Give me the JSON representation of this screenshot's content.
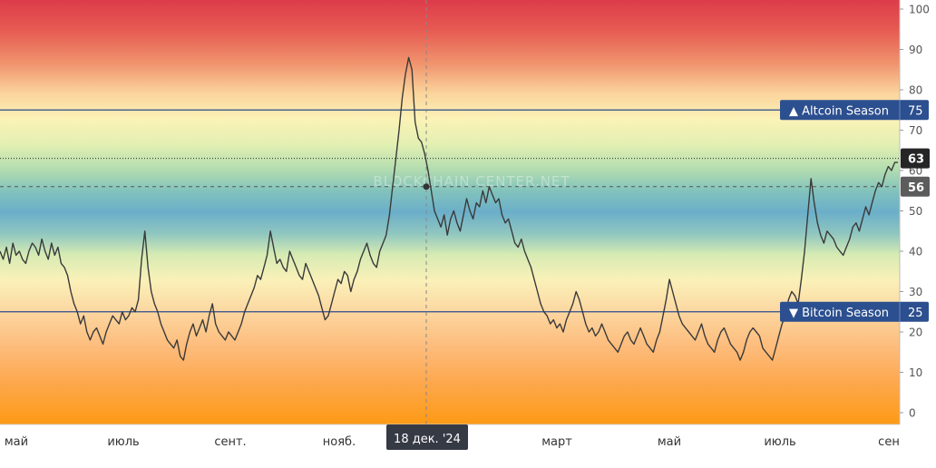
{
  "chart_data": {
    "type": "line",
    "title": "",
    "xlabel": "",
    "ylabel": "",
    "ylim": [
      -2,
      105
    ],
    "yticks": [
      0,
      10,
      20,
      30,
      40,
      50,
      60,
      70,
      80,
      90,
      100
    ],
    "xticks": [
      "май",
      "июль",
      "сент.",
      "нояб.",
      "март",
      "май",
      "июль",
      "сен"
    ],
    "grid": false,
    "background": "heatmap gradient red (top) to orange (bottom)",
    "reference_lines": [
      {
        "label": "▲ Altcoin Season",
        "value": "75"
      },
      {
        "label": "▼ Bitcoin Season",
        "value": "25"
      }
    ],
    "price_badges": [
      {
        "value": "63",
        "style": "dark"
      },
      {
        "value": "56",
        "style": "grey"
      }
    ],
    "crosshair_label": "18 дек. '24",
    "crosshair_value": 56,
    "watermark": "BLOCKCHAIN CENTER.NET",
    "series": [
      {
        "values": [
          40,
          38,
          41,
          37,
          42,
          39,
          40,
          38,
          37,
          40,
          42,
          41,
          39,
          43,
          40,
          38,
          42,
          39,
          41,
          37,
          36,
          34,
          30,
          27,
          25,
          22,
          24,
          20,
          18,
          20,
          21,
          19,
          17,
          20,
          22,
          24,
          23,
          22,
          25,
          23,
          24,
          26,
          25,
          28,
          38,
          45,
          36,
          30,
          27,
          25,
          22,
          20,
          18,
          17,
          16,
          18,
          14,
          13,
          17,
          20,
          22,
          19,
          21,
          23,
          20,
          24,
          27,
          22,
          20,
          19,
          18,
          20,
          19,
          18,
          20,
          22,
          25,
          27,
          29,
          31,
          34,
          33,
          36,
          39,
          45,
          41,
          37,
          38,
          36,
          35,
          40,
          38,
          36,
          34,
          33,
          37,
          35,
          33,
          31,
          29,
          26,
          23,
          24,
          27,
          30,
          33,
          32,
          35,
          34,
          30,
          33,
          35,
          38,
          40,
          42,
          39,
          37,
          36,
          40,
          42,
          44,
          49,
          56,
          63,
          70,
          78,
          84,
          88,
          85,
          72,
          68,
          67,
          64,
          60,
          55,
          50,
          48,
          46,
          49,
          44,
          48,
          50,
          47,
          45,
          49,
          53,
          50,
          48,
          52,
          51,
          55,
          52,
          56,
          54,
          52,
          53,
          49,
          47,
          48,
          45,
          42,
          41,
          43,
          40,
          38,
          36,
          33,
          30,
          27,
          25,
          24,
          22,
          23,
          21,
          22,
          20,
          23,
          25,
          27,
          30,
          28,
          25,
          22,
          20,
          21,
          19,
          20,
          22,
          20,
          18,
          17,
          16,
          15,
          17,
          19,
          20,
          18,
          17,
          19,
          21,
          19,
          17,
          16,
          15,
          18,
          20,
          24,
          28,
          33,
          30,
          27,
          24,
          22,
          21,
          20,
          19,
          18,
          20,
          22,
          19,
          17,
          16,
          15,
          18,
          20,
          21,
          19,
          17,
          16,
          15,
          13,
          15,
          18,
          20,
          21,
          20,
          19,
          16,
          15,
          14,
          13,
          16,
          19,
          22,
          24,
          28,
          30,
          29,
          27,
          33,
          40,
          49,
          58,
          52,
          47,
          44,
          42,
          45,
          44,
          43,
          41,
          40,
          39,
          41,
          43,
          46,
          47,
          45,
          48,
          51,
          49,
          52,
          55,
          57,
          56,
          59,
          61,
          60,
          62,
          62
        ]
      }
    ]
  }
}
